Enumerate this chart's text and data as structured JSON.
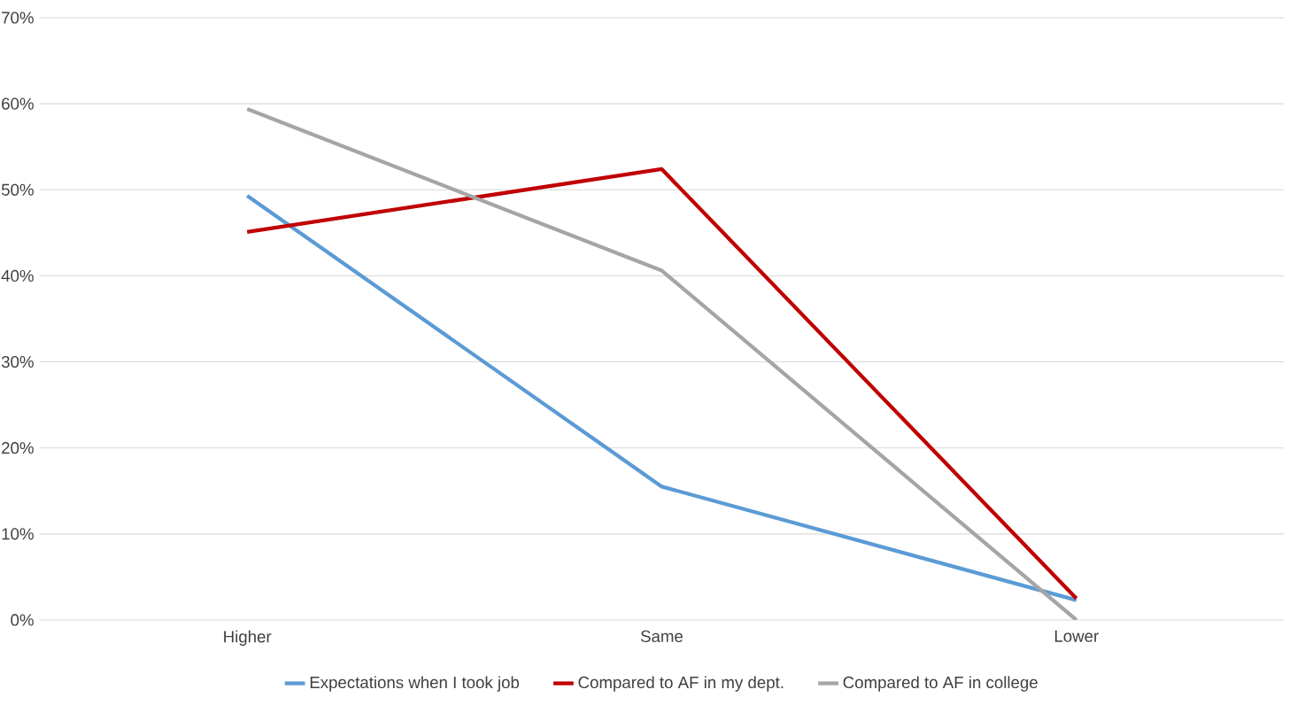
{
  "chart_data": {
    "type": "line",
    "categories": [
      "Higher",
      "Same",
      "Lower"
    ],
    "series": [
      {
        "name": "Expectations when I took job",
        "color": "#5b9bd5",
        "values": [
          49.3,
          15.5,
          2.3
        ]
      },
      {
        "name": "Compared to AF in my dept.",
        "color": "#c00000",
        "values": [
          45.1,
          52.4,
          2.5
        ]
      },
      {
        "name": "Compared to AF in college",
        "color": "#a5a5a5",
        "values": [
          59.4,
          40.6,
          0
        ]
      }
    ],
    "ylim": [
      0,
      70
    ],
    "yticks": [
      {
        "value": 0,
        "label": "0%"
      },
      {
        "value": 10,
        "label": "10%"
      },
      {
        "value": 20,
        "label": "20%"
      },
      {
        "value": 30,
        "label": "30%"
      },
      {
        "value": 40,
        "label": "40%"
      },
      {
        "value": 50,
        "label": "50%"
      },
      {
        "value": 60,
        "label": "60%"
      },
      {
        "value": 70,
        "label": "70%"
      }
    ],
    "grid": "y",
    "legend": "bottom",
    "marker": "none"
  }
}
